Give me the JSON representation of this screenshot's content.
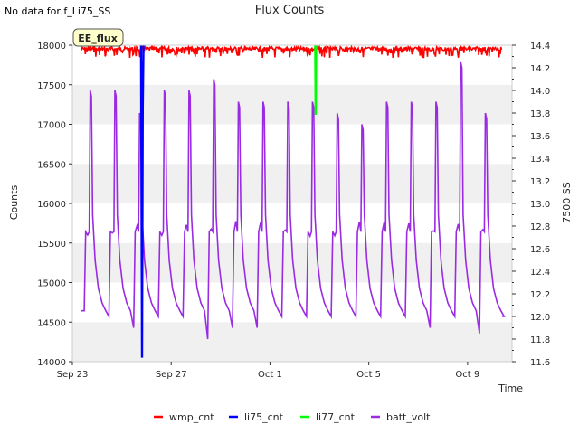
{
  "no_data_note": "No data for f_Li75_SS",
  "badge_label": "EE_flux",
  "chart_data": {
    "type": "line",
    "title": "Flux Counts",
    "xlabel": "Time",
    "ylabel": "Counts",
    "y2label": "7500 SS",
    "x_unit": "days since Sep 23",
    "xlim": [
      0,
      17.8
    ],
    "ylim": [
      14000,
      18000
    ],
    "y2lim": [
      11.6,
      14.4
    ],
    "x_ticks": [
      {
        "x": 0,
        "label": "Sep 23"
      },
      {
        "x": 4,
        "label": "Sep 27"
      },
      {
        "x": 8,
        "label": "Oct 1"
      },
      {
        "x": 12,
        "label": "Oct 5"
      },
      {
        "x": 16,
        "label": "Oct 9"
      }
    ],
    "y_ticks": [
      14000,
      14500,
      15000,
      15500,
      16000,
      16500,
      17000,
      17500,
      18000
    ],
    "y2_ticks": [
      "11.6",
      "11.8",
      "12.0",
      "12.2",
      "12.4",
      "12.6",
      "12.8",
      "13.0",
      "13.2",
      "13.4",
      "13.6",
      "13.8",
      "14.0",
      "14.2",
      "14.4"
    ],
    "series": [
      {
        "name": "wmp_cnt",
        "color": "#ff0000",
        "axis": "left",
        "description": "noisy band just under top of axis",
        "base": 17980,
        "dip_range": [
          17840,
          17980
        ],
        "x_range": [
          0.35,
          17.4
        ]
      },
      {
        "name": "li75_cnt",
        "color": "#0000ff",
        "axis": "left",
        "points": [
          [
            2.78,
            18000
          ],
          [
            2.8,
            16120
          ],
          [
            2.82,
            14050
          ],
          [
            2.85,
            17200
          ],
          [
            2.88,
            18000
          ]
        ]
      },
      {
        "name": "li77_cnt",
        "color": "#00ff00",
        "axis": "left",
        "points": [
          [
            9.83,
            18000
          ],
          [
            9.85,
            17120
          ],
          [
            9.87,
            18000
          ]
        ]
      },
      {
        "name": "batt_volt",
        "color": "#9a2be2",
        "axis": "right",
        "cycle_starts": [
          0.5,
          1.5,
          2.5,
          3.5,
          4.5,
          5.5,
          6.5,
          7.5,
          8.5,
          9.5,
          10.5,
          11.5,
          12.5,
          13.5,
          14.5,
          15.5,
          16.5
        ],
        "cycle_peaks": [
          14.0,
          14.0,
          13.8,
          14.0,
          14.0,
          14.1,
          13.9,
          13.9,
          13.9,
          13.9,
          13.8,
          13.7,
          13.9,
          13.9,
          13.9,
          14.25,
          13.8
        ],
        "cycle_mins": [
          12.0,
          11.9,
          12.0,
          12.0,
          11.8,
          11.9,
          11.9,
          12.0,
          12.0,
          12.0,
          12.0,
          12.0,
          12.0,
          11.9,
          12.0,
          11.85,
          12.0
        ],
        "start": [
          0.35,
          12.05
        ],
        "end": [
          17.4,
          12.0
        ]
      }
    ],
    "legend": [
      "wmp_cnt",
      "li75_cnt",
      "li77_cnt",
      "batt_volt"
    ],
    "legend_position": "bottom",
    "grid": true
  }
}
